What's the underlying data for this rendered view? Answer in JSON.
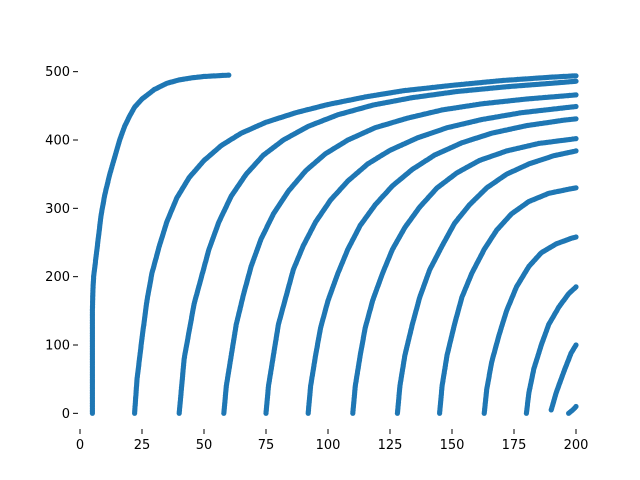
{
  "chart_data": {
    "type": "scatter",
    "title": "",
    "xlabel": "",
    "ylabel": "",
    "xlim": [
      0,
      200
    ],
    "ylim": [
      -20,
      520
    ],
    "x_ticks": [
      "0",
      "25",
      "50",
      "75",
      "100",
      "125",
      "150",
      "175",
      "200"
    ],
    "y_ticks": [
      "0",
      "100",
      "200",
      "300",
      "400",
      "500"
    ],
    "grid": false,
    "legend": "none",
    "color": "#1f77b4",
    "series": [
      {
        "marker": "dot",
        "curves": [
          {
            "x": [
              5.0,
              5.0,
              5.0,
              5.0,
              5.2,
              5.5,
              6.5,
              7.5,
              8.5,
              10,
              12,
              14,
              16,
              18,
              20,
              22,
              25,
              30,
              35,
              40,
              45,
              50,
              55,
              60
            ],
            "y": [
              0,
              50,
              100,
              150,
              180,
              200,
              230,
              260,
              290,
              320,
              350,
              375,
              400,
              420,
              435,
              448,
              460,
              474,
              483,
              488,
              491,
              493,
              494,
              495
            ]
          },
          {
            "x": [
              22,
              23,
              25,
              27,
              29,
              32,
              35,
              39,
              44,
              50,
              57,
              65,
              75,
              87,
              100,
              115,
              130,
              150,
              170,
              190,
              200
            ],
            "y": [
              0,
              50,
              110,
              165,
              205,
              245,
              280,
              315,
              345,
              370,
              392,
              410,
              426,
              440,
              452,
              463,
              472,
              480,
              487,
              492,
              494
            ]
          },
          {
            "x": [
              40,
              41,
              42,
              44,
              46,
              49,
              52,
              56,
              61,
              67,
              74,
              82,
              92,
              104,
              118,
              134,
              152,
              172,
              190,
              200
            ],
            "y": [
              0,
              40,
              80,
              120,
              160,
              200,
              240,
              280,
              318,
              350,
              378,
              400,
              420,
              437,
              451,
              462,
              471,
              478,
              483,
              486
            ]
          },
          {
            "x": [
              58,
              59,
              61,
              63,
              66,
              69,
              73,
              78,
              84,
              91,
              99,
              108,
              119,
              132,
              146,
              162,
              180,
              200
            ],
            "y": [
              0,
              40,
              85,
              130,
              175,
              215,
              255,
              292,
              325,
              355,
              380,
              400,
              418,
              432,
              444,
              453,
              460,
              466
            ]
          },
          {
            "x": [
              75,
              76,
              78,
              80,
              83,
              86,
              90,
              95,
              101,
              108,
              116,
              125,
              136,
              148,
              162,
              178,
              195,
              200
            ],
            "y": [
              0,
              40,
              85,
              130,
              170,
              210,
              245,
              280,
              312,
              340,
              365,
              385,
              403,
              418,
              430,
              440,
              447,
              449
            ]
          },
          {
            "x": [
              92,
              93,
              95,
              97,
              100,
              104,
              108,
              113,
              119,
              126,
              134,
              143,
              154,
              166,
              180,
              195,
              200
            ],
            "y": [
              0,
              40,
              85,
              125,
              165,
              205,
              240,
              275,
              305,
              333,
              357,
              378,
              396,
              410,
              421,
              429,
              431
            ]
          },
          {
            "x": [
              110,
              111,
              113,
              115,
              118,
              122,
              126,
              131,
              137,
              144,
              152,
              161,
              172,
              185,
              200
            ],
            "y": [
              0,
              40,
              85,
              125,
              165,
              205,
              240,
              272,
              302,
              330,
              352,
              370,
              384,
              395,
              402
            ]
          },
          {
            "x": [
              128,
              129,
              131,
              134,
              137,
              141,
              146,
              151,
              157,
              164,
              172,
              181,
              191,
              200
            ],
            "y": [
              0,
              40,
              85,
              130,
              170,
              210,
              245,
              278,
              305,
              330,
              350,
              365,
              377,
              384
            ]
          },
          {
            "x": [
              145,
              146,
              148,
              151,
              154,
              158,
              163,
              168,
              174,
              181,
              189,
              197,
              200
            ],
            "y": [
              0,
              40,
              85,
              130,
              170,
              205,
              240,
              268,
              292,
              310,
              322,
              328,
              330
            ]
          },
          {
            "x": [
              163,
              164,
              166,
              169,
              172,
              176,
              181,
              186,
              192,
              198,
              200
            ],
            "y": [
              0,
              35,
              75,
              115,
              150,
              185,
              215,
              235,
              248,
              256,
              258
            ]
          },
          {
            "x": [
              180,
              181,
              183,
              186,
              189,
              193,
              197,
              200
            ],
            "y": [
              0,
              30,
              65,
              100,
              130,
              155,
              175,
              185
            ]
          },
          {
            "x": [
              190,
              192,
              195,
              198,
              200
            ],
            "y": [
              5,
              30,
              60,
              88,
              100
            ]
          },
          {
            "x": [
              197,
              198,
              199,
              200
            ],
            "y": [
              0,
              3,
              6,
              10
            ]
          }
        ]
      }
    ]
  }
}
